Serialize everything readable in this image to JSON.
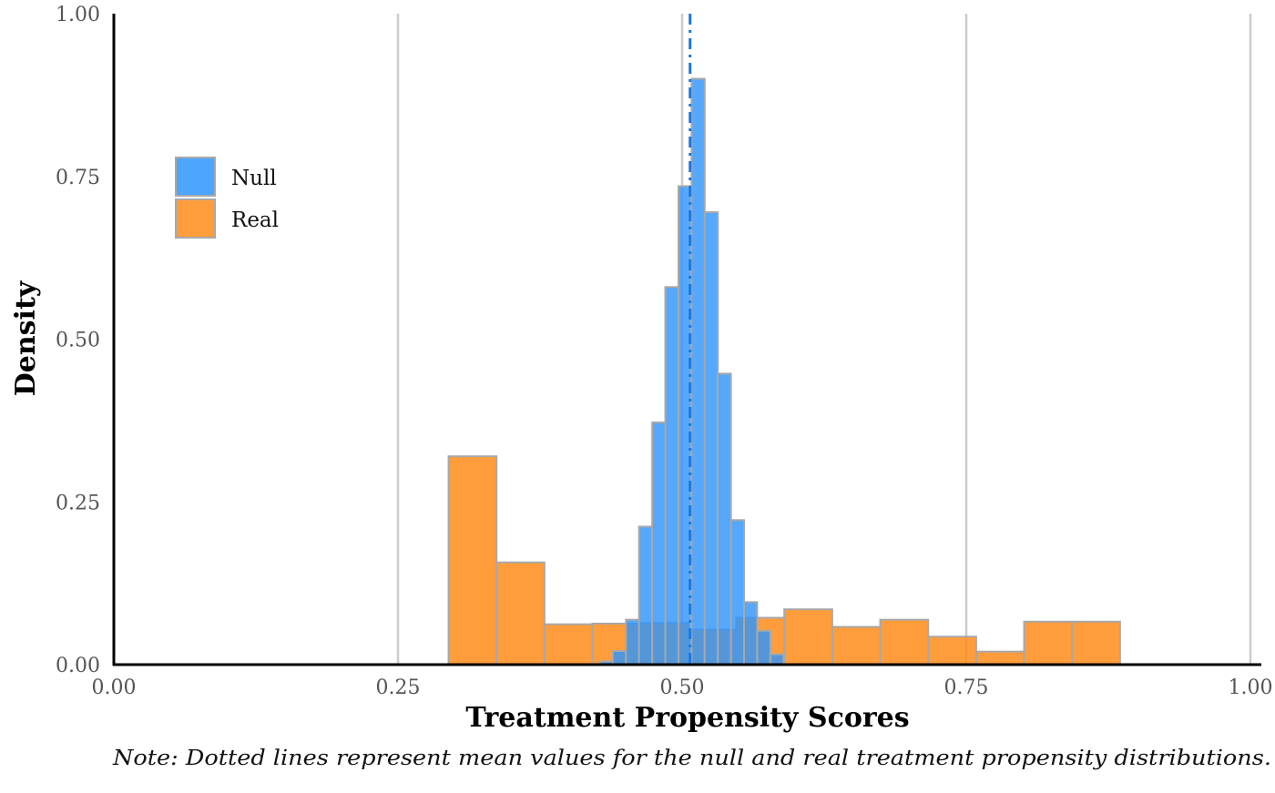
{
  "chart_data": {
    "type": "histogram",
    "xlabel": "Treatment Propensity Scores",
    "ylabel": "Density",
    "note": "Note: Dotted lines represent mean values for the null and real treatment propensity distributions.",
    "xlim": [
      0,
      1
    ],
    "ylim": [
      0,
      1
    ],
    "x_ticks": [
      "0.00",
      "0.25",
      "0.50",
      "0.75",
      "1.00"
    ],
    "y_ticks": [
      "0.00",
      "0.25",
      "0.50",
      "0.75",
      "1.00"
    ],
    "grid": "vertical major lines only",
    "legend_position": "upper-left",
    "colors": {
      "Null": "#2f95fb",
      "Real": "#ff8c1a",
      "bar_outline": "#a8a8a8",
      "grid": "#cccccc",
      "null_mean_line": "#1f77d9"
    },
    "series": [
      {
        "name": "Real",
        "bin_width": 0.0422,
        "bins": [
          {
            "x0": 0.2945,
            "density": 0.32
          },
          {
            "x0": 0.3367,
            "density": 0.157
          },
          {
            "x0": 0.3789,
            "density": 0.062
          },
          {
            "x0": 0.4211,
            "density": 0.063
          },
          {
            "x0": 0.4633,
            "density": 0.064
          },
          {
            "x0": 0.5055,
            "density": 0.054
          },
          {
            "x0": 0.5477,
            "density": 0.072
          },
          {
            "x0": 0.5899,
            "density": 0.085
          },
          {
            "x0": 0.6321,
            "density": 0.058
          },
          {
            "x0": 0.6743,
            "density": 0.069
          },
          {
            "x0": 0.7165,
            "density": 0.043
          },
          {
            "x0": 0.7587,
            "density": 0.02
          },
          {
            "x0": 0.8009,
            "density": 0.066
          },
          {
            "x0": 0.8431,
            "density": 0.066
          }
        ]
      },
      {
        "name": "Null",
        "bin_width": 0.01155,
        "bins": [
          {
            "x0": 0.4275,
            "density": 0.005
          },
          {
            "x0": 0.439,
            "density": 0.021
          },
          {
            "x0": 0.4506,
            "density": 0.069
          },
          {
            "x0": 0.4621,
            "density": 0.212
          },
          {
            "x0": 0.4737,
            "density": 0.372
          },
          {
            "x0": 0.4852,
            "density": 0.58
          },
          {
            "x0": 0.4968,
            "density": 0.735
          },
          {
            "x0": 0.5083,
            "density": 0.9
          },
          {
            "x0": 0.5199,
            "density": 0.695
          },
          {
            "x0": 0.5314,
            "density": 0.447
          },
          {
            "x0": 0.543,
            "density": 0.222
          },
          {
            "x0": 0.5545,
            "density": 0.096
          },
          {
            "x0": 0.5661,
            "density": 0.052
          },
          {
            "x0": 0.5776,
            "density": 0.016
          }
        ]
      }
    ],
    "mean_lines": [
      {
        "series": "Null",
        "x": 0.507,
        "style": "dotdash"
      }
    ]
  }
}
